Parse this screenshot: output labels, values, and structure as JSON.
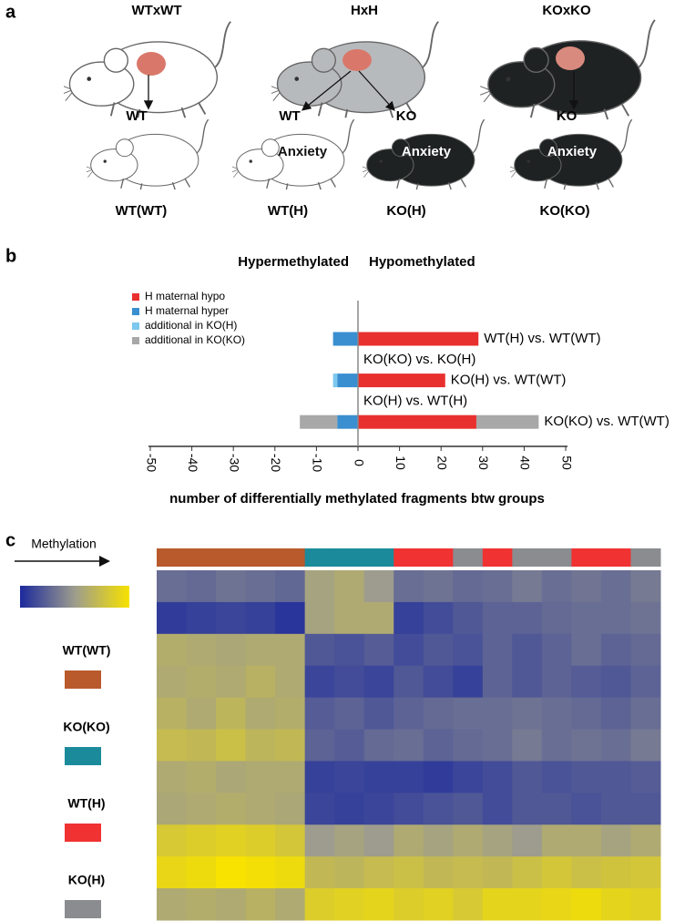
{
  "panel_labels": [
    "a",
    "b",
    "c"
  ],
  "panel_a": {
    "crosses": [
      {
        "title": "WTxWT",
        "offspring": [
          {
            "genotype": "WT",
            "group": "WT(WT)"
          }
        ]
      },
      {
        "title": "HxH",
        "offspring": [
          {
            "genotype": "WT",
            "phenotype": "Anxiety",
            "group": "WT(H)"
          },
          {
            "genotype": "KO",
            "phenotype": "Anxiety",
            "group": "KO(H)"
          }
        ]
      },
      {
        "title": "KOxKO",
        "offspring": [
          {
            "genotype": "KO",
            "phenotype": "Anxiety",
            "group": "KO(KO)"
          }
        ]
      }
    ]
  },
  "chart_data": {
    "type": "bar",
    "orientation": "horizontal",
    "left_title": "Hypermethylated",
    "right_title": "Hypomethylated",
    "xlabel": "number of differentially methylated fragments btw groups",
    "categories": [
      "WT(H) vs. WT(WT)",
      "KO(KO) vs. KO(H)",
      "KO(H) vs. WT(WT)",
      "KO(H) vs. WT(H)",
      "KO(KO) vs. WT(WT)"
    ],
    "series": [
      {
        "name": "H maternal hypo",
        "color": "#e8302e",
        "values": [
          29,
          null,
          21,
          null,
          28.5
        ]
      },
      {
        "name": "H maternal hyper",
        "color": "#3a8fd0",
        "values": [
          -6,
          null,
          -5,
          null,
          -5
        ]
      },
      {
        "name": "additional in KO(H)",
        "color": "#7cc8ee",
        "values": [
          null,
          null,
          -1,
          null,
          null
        ]
      },
      {
        "name": "additional in KO(KO)",
        "color": "#a8a8a8",
        "values": [
          null,
          null,
          null,
          null,
          15
        ],
        "hyper_values": [
          null,
          null,
          null,
          null,
          -9
        ]
      }
    ],
    "xlim": [
      -50,
      50
    ],
    "xticks": [
      -50,
      -40,
      -30,
      -20,
      -10,
      0,
      10,
      20,
      30,
      40,
      50
    ],
    "legend": "upper left"
  },
  "heatmap": {
    "label": "Methylation",
    "colorscale": [
      "#1c2a9c",
      "#9d9c8e",
      "#f7e200"
    ],
    "groups": [
      {
        "name": "WT(WT)",
        "color": "#b95a2c"
      },
      {
        "name": "KO(KO)",
        "color": "#1b8b9b"
      },
      {
        "name": "WT(H)",
        "color": "#f03232"
      },
      {
        "name": "KO(H)",
        "color": "#8a8c90"
      }
    ],
    "column_groups": [
      0,
      0,
      0,
      0,
      0,
      1,
      1,
      1,
      2,
      2,
      3,
      2,
      3,
      3,
      2,
      2,
      3
    ],
    "values": [
      [
        0.3,
        0.28,
        0.32,
        0.3,
        0.27,
        0.55,
        0.6,
        0.5,
        0.3,
        0.32,
        0.28,
        0.3,
        0.35,
        0.3,
        0.33,
        0.3,
        0.35
      ],
      [
        0.08,
        0.1,
        0.12,
        0.1,
        0.05,
        0.55,
        0.6,
        0.6,
        0.1,
        0.15,
        0.2,
        0.25,
        0.25,
        0.28,
        0.3,
        0.3,
        0.32
      ],
      [
        0.62,
        0.6,
        0.58,
        0.6,
        0.6,
        0.2,
        0.18,
        0.22,
        0.15,
        0.2,
        0.18,
        0.25,
        0.2,
        0.25,
        0.3,
        0.25,
        0.28
      ],
      [
        0.6,
        0.62,
        0.6,
        0.65,
        0.6,
        0.12,
        0.15,
        0.12,
        0.2,
        0.15,
        0.1,
        0.25,
        0.2,
        0.25,
        0.22,
        0.2,
        0.25
      ],
      [
        0.65,
        0.6,
        0.68,
        0.6,
        0.62,
        0.22,
        0.25,
        0.2,
        0.25,
        0.28,
        0.3,
        0.3,
        0.32,
        0.3,
        0.28,
        0.25,
        0.3
      ],
      [
        0.72,
        0.7,
        0.75,
        0.68,
        0.7,
        0.25,
        0.22,
        0.28,
        0.3,
        0.25,
        0.28,
        0.3,
        0.35,
        0.3,
        0.32,
        0.3,
        0.35
      ],
      [
        0.6,
        0.62,
        0.58,
        0.6,
        0.6,
        0.1,
        0.12,
        0.1,
        0.1,
        0.08,
        0.12,
        0.15,
        0.2,
        0.18,
        0.2,
        0.2,
        0.22
      ],
      [
        0.58,
        0.6,
        0.62,
        0.6,
        0.58,
        0.12,
        0.1,
        0.12,
        0.15,
        0.18,
        0.2,
        0.15,
        0.2,
        0.2,
        0.18,
        0.2,
        0.2
      ],
      [
        0.82,
        0.85,
        0.88,
        0.85,
        0.8,
        0.5,
        0.55,
        0.5,
        0.6,
        0.55,
        0.6,
        0.55,
        0.5,
        0.6,
        0.6,
        0.55,
        0.6
      ],
      [
        0.92,
        0.95,
        1,
        0.98,
        0.95,
        0.7,
        0.68,
        0.72,
        0.75,
        0.7,
        0.72,
        0.7,
        0.75,
        0.8,
        0.75,
        0.78,
        0.8
      ],
      [
        0.6,
        0.62,
        0.6,
        0.65,
        0.6,
        0.85,
        0.88,
        0.9,
        0.85,
        0.88,
        0.82,
        0.9,
        0.9,
        0.92,
        0.95,
        0.9,
        0.88
      ]
    ]
  }
}
